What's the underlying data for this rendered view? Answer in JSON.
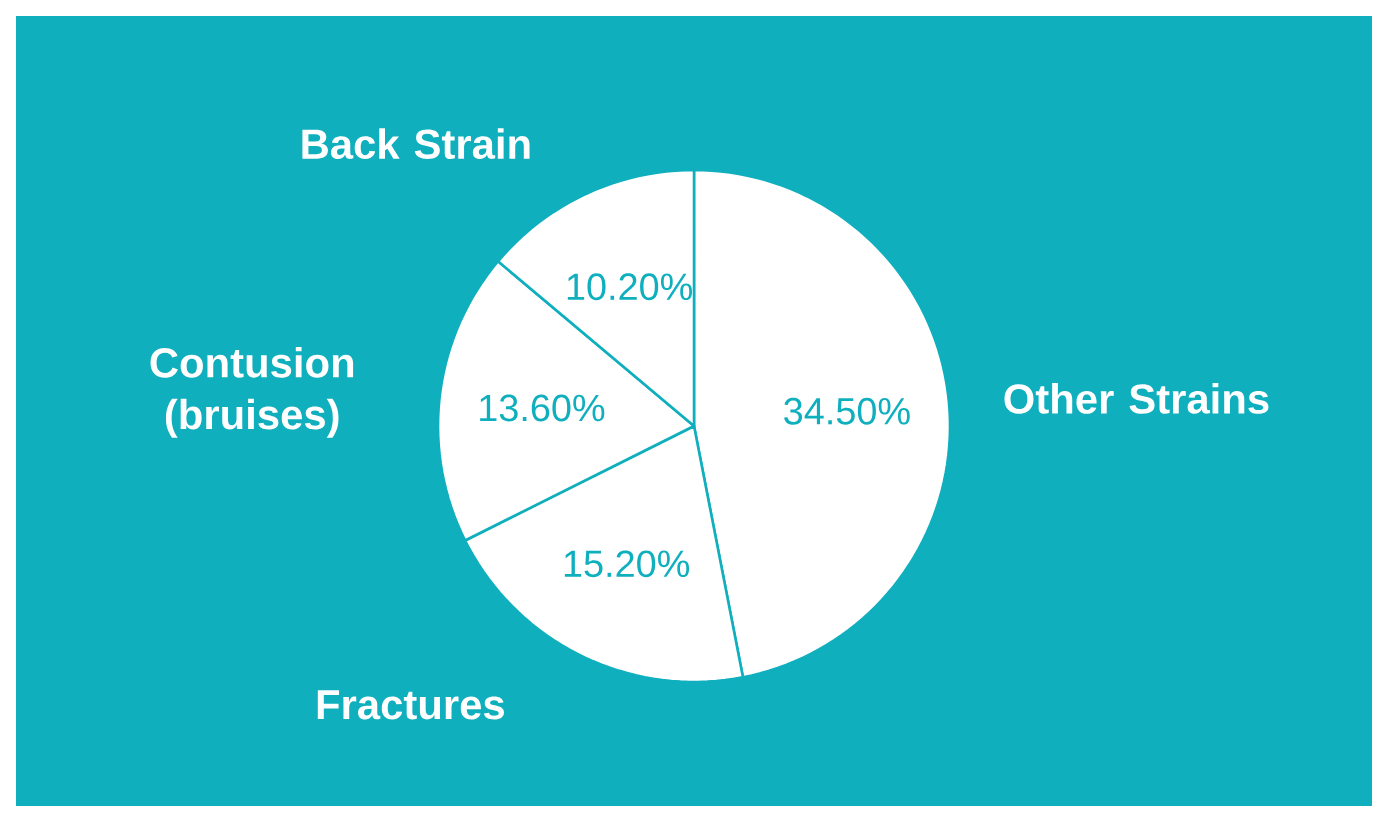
{
  "chart_data": {
    "type": "pie",
    "categories": [
      "Other Strains",
      "Fractures",
      "Contusion (bruises)",
      "Back Strain"
    ],
    "values": [
      34.5,
      15.2,
      13.6,
      10.2
    ],
    "colors": [
      "#ffffff",
      "#ffffff",
      "#ffffff",
      "#ffffff"
    ],
    "value_labels": [
      "34.50%",
      "15.20%",
      "13.60%",
      "10.20%"
    ]
  }
}
